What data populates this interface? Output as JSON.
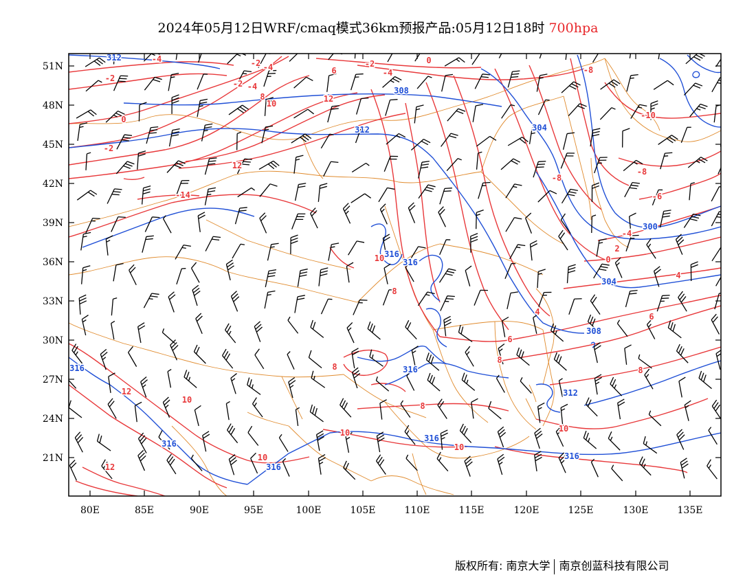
{
  "title": {
    "text": "2024年05月12日WRF/cmaq模式36km预报产品:05月12日18时",
    "level": "700hpa",
    "level_color": "#e8262a"
  },
  "map": {
    "lon_ticks": [
      "80E",
      "85E",
      "90E",
      "95E",
      "100E",
      "105E",
      "110E",
      "115E",
      "120E",
      "125E",
      "130E",
      "135E"
    ],
    "lat_ticks": [
      "51N",
      "48N",
      "45N",
      "42N",
      "39N",
      "36N",
      "33N",
      "30N",
      "27N",
      "24N",
      "21N"
    ],
    "temperature_color": "#e8383a",
    "height_color": "#1f4fd6",
    "border_color": "#e08a2c",
    "wind_color": "#000000",
    "temperature_labels": [
      "-4",
      "-2",
      "0",
      "2",
      "4",
      "6",
      "8",
      "10",
      "12",
      "-14",
      "-10",
      "-8",
      "-6"
    ],
    "height_labels": [
      "312",
      "308",
      "304",
      "300",
      "316"
    ]
  },
  "credits": {
    "left": "版权所有: 南京大学",
    "right": "南京创蓝科技有限公司"
  }
}
